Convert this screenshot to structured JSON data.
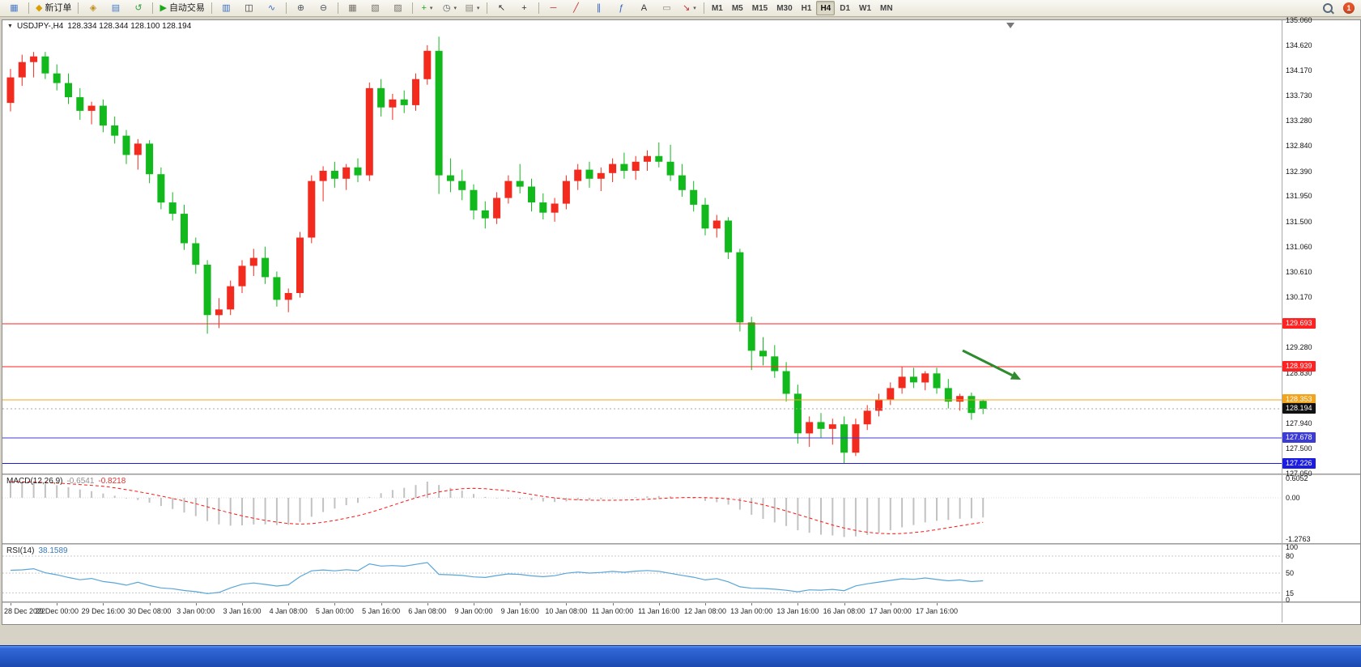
{
  "toolbar": {
    "groups": [
      {
        "items": [
          {
            "name": "new-chart-window-button",
            "glyph": "▦",
            "color": "#4a7ac8"
          }
        ]
      },
      {
        "items": [
          {
            "name": "new-order-button",
            "glyph": "◆",
            "color": "#d8a000",
            "label": "新订单"
          }
        ]
      },
      {
        "items": [
          {
            "name": "metaeditor-button",
            "glyph": "◈",
            "color": "#c09020"
          },
          {
            "name": "market-watch-button",
            "glyph": "▤",
            "color": "#4a7ac8"
          },
          {
            "name": "navigator-button",
            "glyph": "↺",
            "color": "#2f9e3f"
          }
        ]
      },
      {
        "items": [
          {
            "name": "auto-trading-button",
            "glyph": "▶",
            "color": "#18a818",
            "label": "自动交易"
          }
        ]
      },
      {
        "items": [
          {
            "name": "bar-chart-button",
            "glyph": "▥",
            "color": "#3a6fbf"
          },
          {
            "name": "candlestick-chart-button",
            "glyph": "◫",
            "color": "#333333"
          },
          {
            "name": "line-chart-button",
            "glyph": "∿",
            "color": "#3a6fbf"
          }
        ]
      },
      {
        "items": [
          {
            "name": "zoom-in-button",
            "glyph": "⊕",
            "color": "#50585f"
          },
          {
            "name": "zoom-out-button",
            "glyph": "⊖",
            "color": "#50585f"
          }
        ]
      },
      {
        "items": [
          {
            "name": "tile-windows-button",
            "glyph": "▦",
            "color": "#76716a"
          },
          {
            "name": "cascade-windows-button",
            "glyph": "▧",
            "color": "#76716a"
          },
          {
            "name": "arrange-windows-button",
            "glyph": "▨",
            "color": "#76716a"
          }
        ]
      },
      {
        "items": [
          {
            "name": "new-chart-button",
            "glyph": "+",
            "color": "#18a818",
            "caret": true
          },
          {
            "name": "periods-button",
            "glyph": "◷",
            "color": "#50585f",
            "caret": true
          },
          {
            "name": "templates-button",
            "glyph": "▤",
            "color": "#8a857c",
            "caret": true
          }
        ]
      },
      {
        "items": [
          {
            "name": "cursor-button",
            "glyph": "↖",
            "color": "#333333"
          },
          {
            "name": "crosshair-button",
            "glyph": "+",
            "color": "#333333"
          }
        ]
      },
      {
        "items": [
          {
            "name": "horizontal-line-tool-button",
            "glyph": "─",
            "color": "#c03030"
          },
          {
            "name": "trendline-tool-button",
            "glyph": "╱",
            "color": "#c03030"
          },
          {
            "name": "channel-tool-button",
            "glyph": "∥",
            "color": "#3060c0"
          },
          {
            "name": "fibonacci-tool-button",
            "glyph": "ƒ",
            "color": "#3060c0"
          },
          {
            "name": "text-tool-button",
            "glyph": "A",
            "color": "#333333"
          },
          {
            "name": "label-tool-button",
            "glyph": "▭",
            "color": "#8a857c"
          },
          {
            "name": "arrows-tool-button",
            "glyph": "↘",
            "color": "#c03030",
            "caret": true
          }
        ]
      }
    ],
    "timeframes": {
      "items": [
        "M1",
        "M5",
        "M15",
        "M30",
        "H1",
        "H4",
        "D1",
        "W1",
        "MN"
      ],
      "active": "H4"
    },
    "right_items": [
      {
        "name": "search-button",
        "shape": "magnifier"
      },
      {
        "name": "notifications-badge",
        "shape": "badge",
        "text": "1",
        "color": "#e8542a"
      }
    ]
  },
  "chart": {
    "collapse_glyph": "▼",
    "symbol_tf": "USDJPY-,H4",
    "ohlc_text": "128.334 128.344 128.100 128.194"
  },
  "chart_data": {
    "type": "candlestick",
    "symbol": "USDJPY-",
    "timeframe": "H4",
    "ohlc_display": {
      "open": "128.334",
      "high": "128.344",
      "low": "128.100",
      "close": "128.194"
    },
    "colors": {
      "bull": "#f32a1e",
      "bear": "#11b91c",
      "macd_hist": "#c2c2c2",
      "macd_signal": "#ff1414",
      "rsi_line": "#58a6d8",
      "current_price_badge": "#111111",
      "arrow": "#2e8b2e"
    },
    "price_pane": {
      "ylim": [
        127.05,
        135.06
      ],
      "ticks": [
        135.06,
        134.62,
        134.17,
        133.73,
        133.28,
        132.84,
        132.39,
        131.95,
        131.5,
        131.06,
        130.61,
        130.17,
        129.28,
        128.83,
        127.94,
        127.5,
        127.05
      ]
    },
    "hlines": [
      {
        "name": "resistance-line-1",
        "price": 129.693,
        "color": "#ff2222"
      },
      {
        "name": "resistance-line-2",
        "price": 128.939,
        "color": "#ff2222"
      },
      {
        "name": "pivot-line",
        "price": 128.353,
        "color": "#f2a51c"
      },
      {
        "name": "support-line-1",
        "price": 127.678,
        "color": "#3c3cd4"
      },
      {
        "name": "support-line-2",
        "price": 127.226,
        "color": "#1c1ce0"
      }
    ],
    "current_price": 128.194,
    "candles": [
      [
        133.6,
        134.2,
        133.45,
        134.05
      ],
      [
        134.05,
        134.45,
        133.9,
        134.32
      ],
      [
        134.32,
        134.5,
        134.05,
        134.42
      ],
      [
        134.42,
        134.5,
        134.02,
        134.12
      ],
      [
        134.12,
        134.28,
        133.82,
        133.95
      ],
      [
        133.95,
        134.12,
        133.58,
        133.7
      ],
      [
        133.7,
        133.86,
        133.3,
        133.46
      ],
      [
        133.46,
        133.62,
        133.22,
        133.55
      ],
      [
        133.55,
        133.66,
        133.08,
        133.2
      ],
      [
        133.2,
        133.36,
        132.88,
        133.02
      ],
      [
        133.02,
        133.12,
        132.52,
        132.68
      ],
      [
        132.68,
        132.96,
        132.42,
        132.88
      ],
      [
        132.88,
        132.94,
        132.18,
        132.34
      ],
      [
        132.34,
        132.46,
        131.72,
        131.84
      ],
      [
        131.84,
        132.02,
        131.52,
        131.64
      ],
      [
        131.64,
        131.8,
        131.0,
        131.12
      ],
      [
        131.12,
        131.22,
        130.58,
        130.74
      ],
      [
        130.74,
        130.82,
        129.52,
        129.85
      ],
      [
        129.85,
        130.15,
        129.62,
        129.95
      ],
      [
        129.95,
        130.46,
        129.85,
        130.36
      ],
      [
        130.36,
        130.82,
        130.24,
        130.72
      ],
      [
        130.72,
        131.02,
        130.54,
        130.86
      ],
      [
        130.86,
        131.06,
        130.4,
        130.52
      ],
      [
        130.52,
        130.62,
        130.0,
        130.12
      ],
      [
        130.12,
        130.32,
        129.9,
        130.24
      ],
      [
        130.24,
        131.32,
        130.16,
        131.22
      ],
      [
        131.22,
        132.32,
        131.12,
        132.22
      ],
      [
        132.22,
        132.48,
        131.86,
        132.4
      ],
      [
        132.4,
        132.56,
        132.1,
        132.26
      ],
      [
        132.26,
        132.52,
        132.06,
        132.46
      ],
      [
        132.46,
        132.62,
        132.2,
        132.32
      ],
      [
        132.32,
        133.96,
        132.22,
        133.86
      ],
      [
        133.86,
        134.02,
        133.36,
        133.52
      ],
      [
        133.52,
        133.76,
        133.3,
        133.66
      ],
      [
        133.66,
        133.82,
        133.42,
        133.56
      ],
      [
        133.56,
        134.12,
        133.46,
        134.02
      ],
      [
        134.02,
        134.62,
        133.92,
        134.52
      ],
      [
        134.52,
        134.77,
        131.99,
        132.32
      ],
      [
        132.32,
        132.62,
        132.02,
        132.22
      ],
      [
        132.22,
        132.42,
        131.88,
        132.06
      ],
      [
        132.06,
        132.16,
        131.54,
        131.7
      ],
      [
        131.7,
        131.86,
        131.38,
        131.56
      ],
      [
        131.56,
        132.02,
        131.46,
        131.92
      ],
      [
        131.92,
        132.32,
        131.82,
        132.22
      ],
      [
        132.22,
        132.52,
        132.0,
        132.12
      ],
      [
        132.12,
        132.26,
        131.68,
        131.84
      ],
      [
        131.84,
        132.0,
        131.54,
        131.66
      ],
      [
        131.66,
        131.92,
        131.5,
        131.82
      ],
      [
        131.82,
        132.32,
        131.72,
        132.22
      ],
      [
        132.22,
        132.52,
        132.06,
        132.42
      ],
      [
        132.42,
        132.56,
        132.1,
        132.26
      ],
      [
        132.26,
        132.46,
        132.04,
        132.36
      ],
      [
        132.36,
        132.62,
        132.2,
        132.52
      ],
      [
        132.52,
        132.72,
        132.26,
        132.4
      ],
      [
        132.4,
        132.66,
        132.24,
        132.56
      ],
      [
        132.56,
        132.76,
        132.4,
        132.66
      ],
      [
        132.66,
        132.9,
        132.46,
        132.56
      ],
      [
        132.56,
        132.86,
        132.22,
        132.32
      ],
      [
        132.32,
        132.52,
        131.94,
        132.06
      ],
      [
        132.06,
        132.22,
        131.68,
        131.8
      ],
      [
        131.8,
        131.92,
        131.26,
        131.38
      ],
      [
        131.38,
        131.62,
        131.22,
        131.52
      ],
      [
        131.52,
        131.58,
        130.84,
        130.96
      ],
      [
        130.96,
        131.02,
        129.56,
        129.72
      ],
      [
        129.72,
        129.82,
        128.88,
        129.22
      ],
      [
        129.22,
        129.46,
        128.96,
        129.12
      ],
      [
        129.12,
        129.32,
        128.74,
        128.86
      ],
      [
        128.86,
        129.02,
        128.32,
        128.46
      ],
      [
        128.46,
        128.62,
        127.58,
        127.76
      ],
      [
        127.76,
        128.06,
        127.52,
        127.96
      ],
      [
        127.96,
        128.12,
        127.68,
        127.84
      ],
      [
        127.84,
        128.02,
        127.56,
        127.92
      ],
      [
        127.92,
        128.06,
        127.23,
        127.42
      ],
      [
        127.42,
        128.02,
        127.36,
        127.92
      ],
      [
        127.92,
        128.26,
        127.82,
        128.16
      ],
      [
        128.16,
        128.46,
        128.06,
        128.36
      ],
      [
        128.36,
        128.66,
        128.26,
        128.56
      ],
      [
        128.56,
        128.94,
        128.46,
        128.76
      ],
      [
        128.76,
        128.92,
        128.56,
        128.66
      ],
      [
        128.66,
        128.86,
        128.52,
        128.82
      ],
      [
        128.82,
        128.92,
        128.46,
        128.56
      ],
      [
        128.56,
        128.72,
        128.2,
        128.32
      ],
      [
        128.32,
        128.46,
        128.16,
        128.42
      ],
      [
        128.42,
        128.48,
        128.0,
        128.12
      ],
      [
        128.334,
        128.344,
        128.1,
        128.194
      ]
    ],
    "x_labels": [
      {
        "i": 0,
        "t": "28 Dec 2022"
      },
      {
        "i": 4,
        "t": "29 Dec 00:00"
      },
      {
        "i": 8,
        "t": "29 Dec 16:00"
      },
      {
        "i": 12,
        "t": "30 Dec 08:00"
      },
      {
        "i": 16,
        "t": "3 Jan 00:00"
      },
      {
        "i": 20,
        "t": "3 Jan 16:00"
      },
      {
        "i": 24,
        "t": "4 Jan 08:00"
      },
      {
        "i": 28,
        "t": "5 Jan 00:00"
      },
      {
        "i": 32,
        "t": "5 Jan 16:00"
      },
      {
        "i": 36,
        "t": "6 Jan 08:00"
      },
      {
        "i": 40,
        "t": "9 Jan 00:00"
      },
      {
        "i": 44,
        "t": "9 Jan 16:00"
      },
      {
        "i": 48,
        "t": "10 Jan 08:00"
      },
      {
        "i": 52,
        "t": "11 Jan 00:00"
      },
      {
        "i": 56,
        "t": "11 Jan 16:00"
      },
      {
        "i": 60,
        "t": "12 Jan 08:00"
      },
      {
        "i": 64,
        "t": "13 Jan 00:00"
      },
      {
        "i": 68,
        "t": "13 Jan 16:00"
      },
      {
        "i": 72,
        "t": "16 Jan 08:00"
      },
      {
        "i": 76,
        "t": "17 Jan 00:00"
      },
      {
        "i": 80,
        "t": "17 Jan 16:00"
      }
    ],
    "macd": {
      "name": "MACD(12,26,9)",
      "main": "-0.6541",
      "signal": "-0.8218",
      "ticks": [
        "0.6052",
        "0.00",
        "-1.2763"
      ],
      "tick_values": [
        0.6052,
        0,
        -1.2763
      ],
      "ylim": [
        -1.4,
        0.7
      ]
    },
    "rsi": {
      "name": "RSI(14)",
      "value": "38.1589",
      "ticks": [
        "100",
        "80",
        "50",
        "15",
        "0"
      ],
      "tick_values": [
        100,
        80,
        50,
        15,
        0
      ],
      "levels": [
        80,
        50,
        15
      ],
      "ylim": [
        0,
        100
      ]
    },
    "annotation_arrow": {
      "from": [
        1186,
        408
      ],
      "to": [
        1258,
        444
      ]
    }
  }
}
